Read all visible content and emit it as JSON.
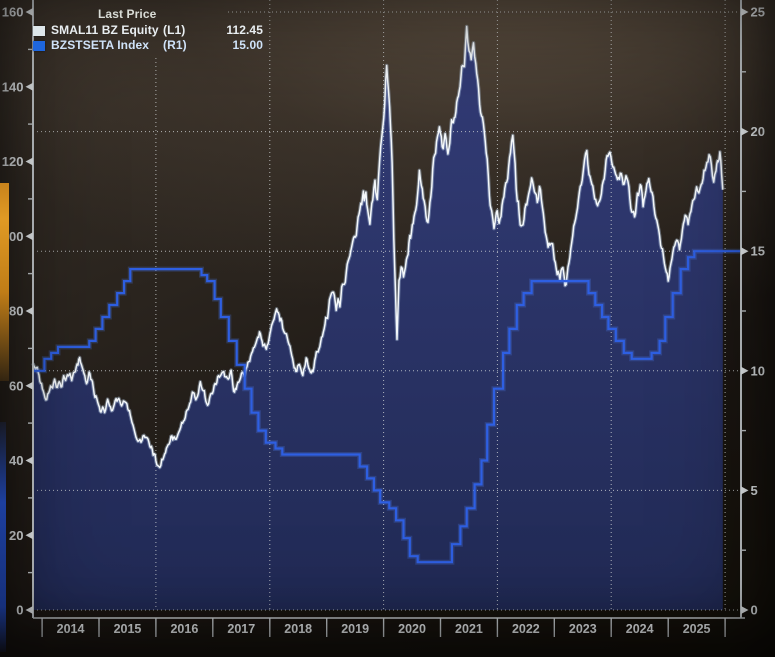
{
  "legend": {
    "title": "Last Price",
    "series": [
      {
        "name": "SMAL11 BZ Equity",
        "axis_tag": "(L1)",
        "last_price": "112.45",
        "swatch_color": "#dde6ea"
      },
      {
        "name": "BZSTSETA Index",
        "axis_tag": "(R1)",
        "last_price": "15.00",
        "swatch_color": "#1e66dd"
      }
    ]
  },
  "chart_data": {
    "type": "line",
    "title": "Last Price",
    "x_axis": {
      "range": [
        2013.84,
        2026.28
      ],
      "year_labels": [
        "2014",
        "2015",
        "2016",
        "2017",
        "2018",
        "2019",
        "2020",
        "2021",
        "2022",
        "2023",
        "2024",
        "2025"
      ],
      "boundary_ticks": [
        2014,
        2015,
        2016,
        2017,
        2018,
        2019,
        2020,
        2021,
        2022,
        2023,
        2024,
        2025,
        2026
      ],
      "gridline_years": [
        2016,
        2018,
        2020,
        2022,
        2024,
        2026
      ]
    },
    "left_axis": {
      "range": [
        0,
        160
      ],
      "major_ticks": [
        0,
        20,
        40,
        60,
        80,
        100,
        120,
        140,
        160
      ],
      "minor_step": 10
    },
    "right_axis": {
      "range": [
        0,
        25
      ],
      "major_ticks": [
        0,
        5,
        10,
        15,
        20,
        25
      ],
      "minor_step": 2.5
    },
    "grid": {
      "horizontal_right_axis_values": [
        0,
        5,
        10,
        15,
        20,
        25
      ]
    },
    "series": [
      {
        "name": "SMAL11 BZ Equity",
        "axis": "L1",
        "style": "line_area",
        "line_color": "#f4f8fb",
        "glow_color": "#b9cfe8",
        "fill_top": "#333c77",
        "fill_bottom": "#212a55",
        "last_price": 112.45,
        "points": [
          [
            2013.84,
            66
          ],
          [
            2013.9,
            64
          ],
          [
            2013.96,
            62
          ],
          [
            2014.02,
            58
          ],
          [
            2014.08,
            56.5
          ],
          [
            2014.15,
            59
          ],
          [
            2014.22,
            61
          ],
          [
            2014.3,
            60
          ],
          [
            2014.38,
            62
          ],
          [
            2014.46,
            63
          ],
          [
            2014.52,
            62
          ],
          [
            2014.6,
            65
          ],
          [
            2014.66,
            67.5
          ],
          [
            2014.72,
            64
          ],
          [
            2014.78,
            61
          ],
          [
            2014.84,
            63
          ],
          [
            2014.9,
            59
          ],
          [
            2014.96,
            56
          ],
          [
            2015.02,
            53.5
          ],
          [
            2015.08,
            52.5
          ],
          [
            2015.15,
            55.5
          ],
          [
            2015.22,
            54
          ],
          [
            2015.3,
            56.5
          ],
          [
            2015.38,
            55.5
          ],
          [
            2015.46,
            56
          ],
          [
            2015.52,
            53
          ],
          [
            2015.58,
            50
          ],
          [
            2015.65,
            46.5
          ],
          [
            2015.72,
            44.5
          ],
          [
            2015.79,
            46
          ],
          [
            2015.86,
            45
          ],
          [
            2015.92,
            43.5
          ],
          [
            2016.0,
            40.5
          ],
          [
            2016.05,
            38
          ],
          [
            2016.12,
            40
          ],
          [
            2016.2,
            43
          ],
          [
            2016.28,
            46.5
          ],
          [
            2016.34,
            45.5
          ],
          [
            2016.42,
            48
          ],
          [
            2016.5,
            51
          ],
          [
            2016.58,
            55
          ],
          [
            2016.64,
            58
          ],
          [
            2016.7,
            57
          ],
          [
            2016.78,
            60
          ],
          [
            2016.85,
            58
          ],
          [
            2016.89,
            54.5
          ],
          [
            2016.96,
            57
          ],
          [
            2017.04,
            60
          ],
          [
            2017.1,
            62.5
          ],
          [
            2017.16,
            64
          ],
          [
            2017.24,
            62
          ],
          [
            2017.32,
            63
          ],
          [
            2017.38,
            58.5
          ],
          [
            2017.44,
            61
          ],
          [
            2017.52,
            62.5
          ],
          [
            2017.6,
            65
          ],
          [
            2017.68,
            68
          ],
          [
            2017.76,
            71.5
          ],
          [
            2017.82,
            74
          ],
          [
            2017.88,
            71
          ],
          [
            2017.94,
            69.5
          ],
          [
            2018.0,
            73
          ],
          [
            2018.06,
            78
          ],
          [
            2018.12,
            80
          ],
          [
            2018.18,
            77.5
          ],
          [
            2018.26,
            75
          ],
          [
            2018.34,
            71
          ],
          [
            2018.4,
            67
          ],
          [
            2018.46,
            63.5
          ],
          [
            2018.52,
            66
          ],
          [
            2018.58,
            62.5
          ],
          [
            2018.64,
            67
          ],
          [
            2018.7,
            65
          ],
          [
            2018.76,
            63.5
          ],
          [
            2018.82,
            68
          ],
          [
            2018.88,
            71
          ],
          [
            2018.94,
            74.5
          ],
          [
            2019.0,
            78
          ],
          [
            2019.05,
            82
          ],
          [
            2019.12,
            84
          ],
          [
            2019.2,
            81
          ],
          [
            2019.28,
            86
          ],
          [
            2019.36,
            91
          ],
          [
            2019.44,
            96
          ],
          [
            2019.52,
            102
          ],
          [
            2019.6,
            107
          ],
          [
            2019.66,
            112
          ],
          [
            2019.72,
            108
          ],
          [
            2019.76,
            105
          ],
          [
            2019.81,
            111
          ],
          [
            2019.85,
            115
          ],
          [
            2019.89,
            111
          ],
          [
            2019.93,
            119
          ],
          [
            2019.97,
            127
          ],
          [
            2020.02,
            138
          ],
          [
            2020.055,
            146
          ],
          [
            2020.09,
            140
          ],
          [
            2020.12,
            131
          ],
          [
            2020.15,
            120
          ],
          [
            2020.18,
            100
          ],
          [
            2020.21,
            84
          ],
          [
            2020.235,
            74
          ],
          [
            2020.27,
            88
          ],
          [
            2020.31,
            92
          ],
          [
            2020.35,
            87
          ],
          [
            2020.4,
            94
          ],
          [
            2020.46,
            99
          ],
          [
            2020.52,
            104
          ],
          [
            2020.58,
            110
          ],
          [
            2020.63,
            117
          ],
          [
            2020.68,
            112
          ],
          [
            2020.73,
            107
          ],
          [
            2020.78,
            104
          ],
          [
            2020.83,
            111
          ],
          [
            2020.88,
            119
          ],
          [
            2020.93,
            126
          ],
          [
            2020.98,
            129
          ],
          [
            2021.03,
            124
          ],
          [
            2021.08,
            127
          ],
          [
            2021.13,
            123
          ],
          [
            2021.18,
            128
          ],
          [
            2021.24,
            133
          ],
          [
            2021.3,
            137
          ],
          [
            2021.36,
            142
          ],
          [
            2021.42,
            148
          ],
          [
            2021.46,
            155
          ],
          [
            2021.5,
            150
          ],
          [
            2021.54,
            146
          ],
          [
            2021.58,
            151
          ],
          [
            2021.62,
            144
          ],
          [
            2021.67,
            139
          ],
          [
            2021.72,
            133
          ],
          [
            2021.77,
            127
          ],
          [
            2021.82,
            119
          ],
          [
            2021.86,
            112
          ],
          [
            2021.9,
            106
          ],
          [
            2021.94,
            103
          ],
          [
            2021.98,
            107
          ],
          [
            2022.03,
            103
          ],
          [
            2022.08,
            107
          ],
          [
            2022.13,
            112
          ],
          [
            2022.18,
            117
          ],
          [
            2022.23,
            122
          ],
          [
            2022.27,
            126
          ],
          [
            2022.31,
            119
          ],
          [
            2022.35,
            111
          ],
          [
            2022.4,
            105
          ],
          [
            2022.45,
            103
          ],
          [
            2022.5,
            108
          ],
          [
            2022.55,
            112
          ],
          [
            2022.6,
            116
          ],
          [
            2022.65,
            112
          ],
          [
            2022.7,
            109
          ],
          [
            2022.74,
            113
          ],
          [
            2022.79,
            107
          ],
          [
            2022.84,
            101
          ],
          [
            2022.89,
            96
          ],
          [
            2022.94,
            99
          ],
          [
            2023.0,
            95
          ],
          [
            2023.05,
            91
          ],
          [
            2023.1,
            89
          ],
          [
            2023.15,
            92
          ],
          [
            2023.19,
            88
          ],
          [
            2023.24,
            91
          ],
          [
            2023.29,
            96
          ],
          [
            2023.34,
            102
          ],
          [
            2023.39,
            107
          ],
          [
            2023.44,
            112
          ],
          [
            2023.49,
            116
          ],
          [
            2023.53,
            120
          ],
          [
            2023.57,
            122
          ],
          [
            2023.61,
            117
          ],
          [
            2023.66,
            114
          ],
          [
            2023.71,
            110
          ],
          [
            2023.76,
            107
          ],
          [
            2023.81,
            111
          ],
          [
            2023.86,
            115
          ],
          [
            2023.91,
            119
          ],
          [
            2023.96,
            123
          ],
          [
            2024.01,
            121
          ],
          [
            2024.06,
            117
          ],
          [
            2024.11,
            114
          ],
          [
            2024.16,
            117
          ],
          [
            2024.21,
            113
          ],
          [
            2024.26,
            116
          ],
          [
            2024.31,
            112
          ],
          [
            2024.36,
            108
          ],
          [
            2024.41,
            106
          ],
          [
            2024.46,
            110
          ],
          [
            2024.51,
            113
          ],
          [
            2024.56,
            109
          ],
          [
            2024.61,
            112
          ],
          [
            2024.66,
            115
          ],
          [
            2024.7,
            112
          ],
          [
            2024.75,
            108
          ],
          [
            2024.8,
            104
          ],
          [
            2024.85,
            100
          ],
          [
            2024.9,
            96
          ],
          [
            2024.95,
            92
          ],
          [
            2025.0,
            88
          ],
          [
            2025.05,
            93
          ],
          [
            2025.1,
            96
          ],
          [
            2025.15,
            99
          ],
          [
            2025.2,
            97
          ],
          [
            2025.25,
            102
          ],
          [
            2025.3,
            105
          ],
          [
            2025.35,
            103
          ],
          [
            2025.4,
            107
          ],
          [
            2025.45,
            110
          ],
          [
            2025.5,
            113
          ],
          [
            2025.54,
            110
          ],
          [
            2025.58,
            113
          ],
          [
            2025.63,
            116
          ],
          [
            2025.68,
            119
          ],
          [
            2025.72,
            122
          ],
          [
            2025.76,
            118
          ],
          [
            2025.8,
            115
          ],
          [
            2025.84,
            118
          ],
          [
            2025.88,
            121
          ],
          [
            2025.91,
            123
          ],
          [
            2025.94,
            116
          ],
          [
            2025.96,
            112.45
          ]
        ]
      },
      {
        "name": "BZSTSETA Index",
        "axis": "R1",
        "style": "step",
        "line_color": "#2e5fe2",
        "glow_color": "#4a7df0",
        "last_price": 15.0,
        "points": [
          [
            2013.84,
            10.0
          ],
          [
            2014.04,
            10.5
          ],
          [
            2014.16,
            10.75
          ],
          [
            2014.28,
            11.0
          ],
          [
            2014.83,
            11.25
          ],
          [
            2014.94,
            11.75
          ],
          [
            2015.06,
            12.25
          ],
          [
            2015.18,
            12.75
          ],
          [
            2015.32,
            13.25
          ],
          [
            2015.44,
            13.75
          ],
          [
            2015.55,
            14.25
          ],
          [
            2016.8,
            14.0
          ],
          [
            2016.9,
            13.75
          ],
          [
            2017.03,
            13.0
          ],
          [
            2017.14,
            12.25
          ],
          [
            2017.28,
            11.25
          ],
          [
            2017.42,
            10.25
          ],
          [
            2017.56,
            9.25
          ],
          [
            2017.68,
            8.25
          ],
          [
            2017.8,
            7.5
          ],
          [
            2017.93,
            7.0
          ],
          [
            2018.1,
            6.75
          ],
          [
            2018.22,
            6.5
          ],
          [
            2019.58,
            6.0
          ],
          [
            2019.71,
            5.5
          ],
          [
            2019.83,
            5.0
          ],
          [
            2019.94,
            4.5
          ],
          [
            2020.1,
            4.25
          ],
          [
            2020.22,
            3.75
          ],
          [
            2020.35,
            3.0
          ],
          [
            2020.46,
            2.25
          ],
          [
            2020.6,
            2.0
          ],
          [
            2021.2,
            2.75
          ],
          [
            2021.35,
            3.5
          ],
          [
            2021.46,
            4.25
          ],
          [
            2021.6,
            5.25
          ],
          [
            2021.72,
            6.25
          ],
          [
            2021.82,
            7.75
          ],
          [
            2021.94,
            9.25
          ],
          [
            2022.1,
            10.75
          ],
          [
            2022.21,
            11.75
          ],
          [
            2022.34,
            12.75
          ],
          [
            2022.46,
            13.25
          ],
          [
            2022.6,
            13.75
          ],
          [
            2023.6,
            13.25
          ],
          [
            2023.72,
            12.75
          ],
          [
            2023.84,
            12.25
          ],
          [
            2023.95,
            11.75
          ],
          [
            2024.08,
            11.25
          ],
          [
            2024.22,
            10.75
          ],
          [
            2024.36,
            10.5
          ],
          [
            2024.71,
            10.75
          ],
          [
            2024.85,
            11.25
          ],
          [
            2024.95,
            12.25
          ],
          [
            2025.08,
            13.25
          ],
          [
            2025.22,
            14.25
          ],
          [
            2025.35,
            14.75
          ],
          [
            2025.46,
            15.0
          ],
          [
            2026.28,
            15.0
          ]
        ]
      }
    ],
    "layout_hints": {
      "grid": "dotted",
      "legend_position": "top-left",
      "background": "dark"
    }
  },
  "colors": {
    "axis_line": "#c9ced1",
    "axis_text": "#edf1f3",
    "gridline": "#d6dadb",
    "legend_title": "#d9dcd6",
    "legend_l1_text": "#e9eef1",
    "legend_r1_text": "#cfe2f8"
  }
}
